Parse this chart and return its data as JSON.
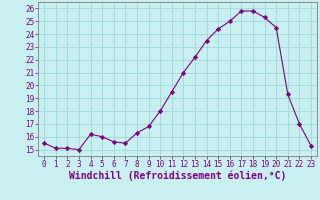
{
  "x": [
    0,
    1,
    2,
    3,
    4,
    5,
    6,
    7,
    8,
    9,
    10,
    11,
    12,
    13,
    14,
    15,
    16,
    17,
    18,
    19,
    20,
    21,
    22,
    23
  ],
  "y": [
    15.5,
    15.1,
    15.1,
    15.0,
    16.2,
    16.0,
    15.6,
    15.5,
    16.3,
    16.8,
    18.0,
    19.5,
    21.0,
    22.2,
    23.5,
    24.4,
    25.0,
    25.8,
    25.8,
    25.3,
    24.5,
    19.3,
    17.0,
    15.3
  ],
  "line_color": "#800080",
  "marker": "D",
  "marker_size": 2.2,
  "bg_color": "#c8f0f0",
  "grid_color": "#a0d8d8",
  "xlabel": "Windchill (Refroidissement éolien,°C)",
  "xlim": [
    -0.5,
    23.5
  ],
  "ylim": [
    14.5,
    26.5
  ],
  "yticks": [
    15,
    16,
    17,
    18,
    19,
    20,
    21,
    22,
    23,
    24,
    25,
    26
  ],
  "xticks": [
    0,
    1,
    2,
    3,
    4,
    5,
    6,
    7,
    8,
    9,
    10,
    11,
    12,
    13,
    14,
    15,
    16,
    17,
    18,
    19,
    20,
    21,
    22,
    23
  ],
  "tick_color": "#800080",
  "tick_fontsize": 5.5,
  "xlabel_fontsize": 7.0,
  "axis_color": "#808080"
}
